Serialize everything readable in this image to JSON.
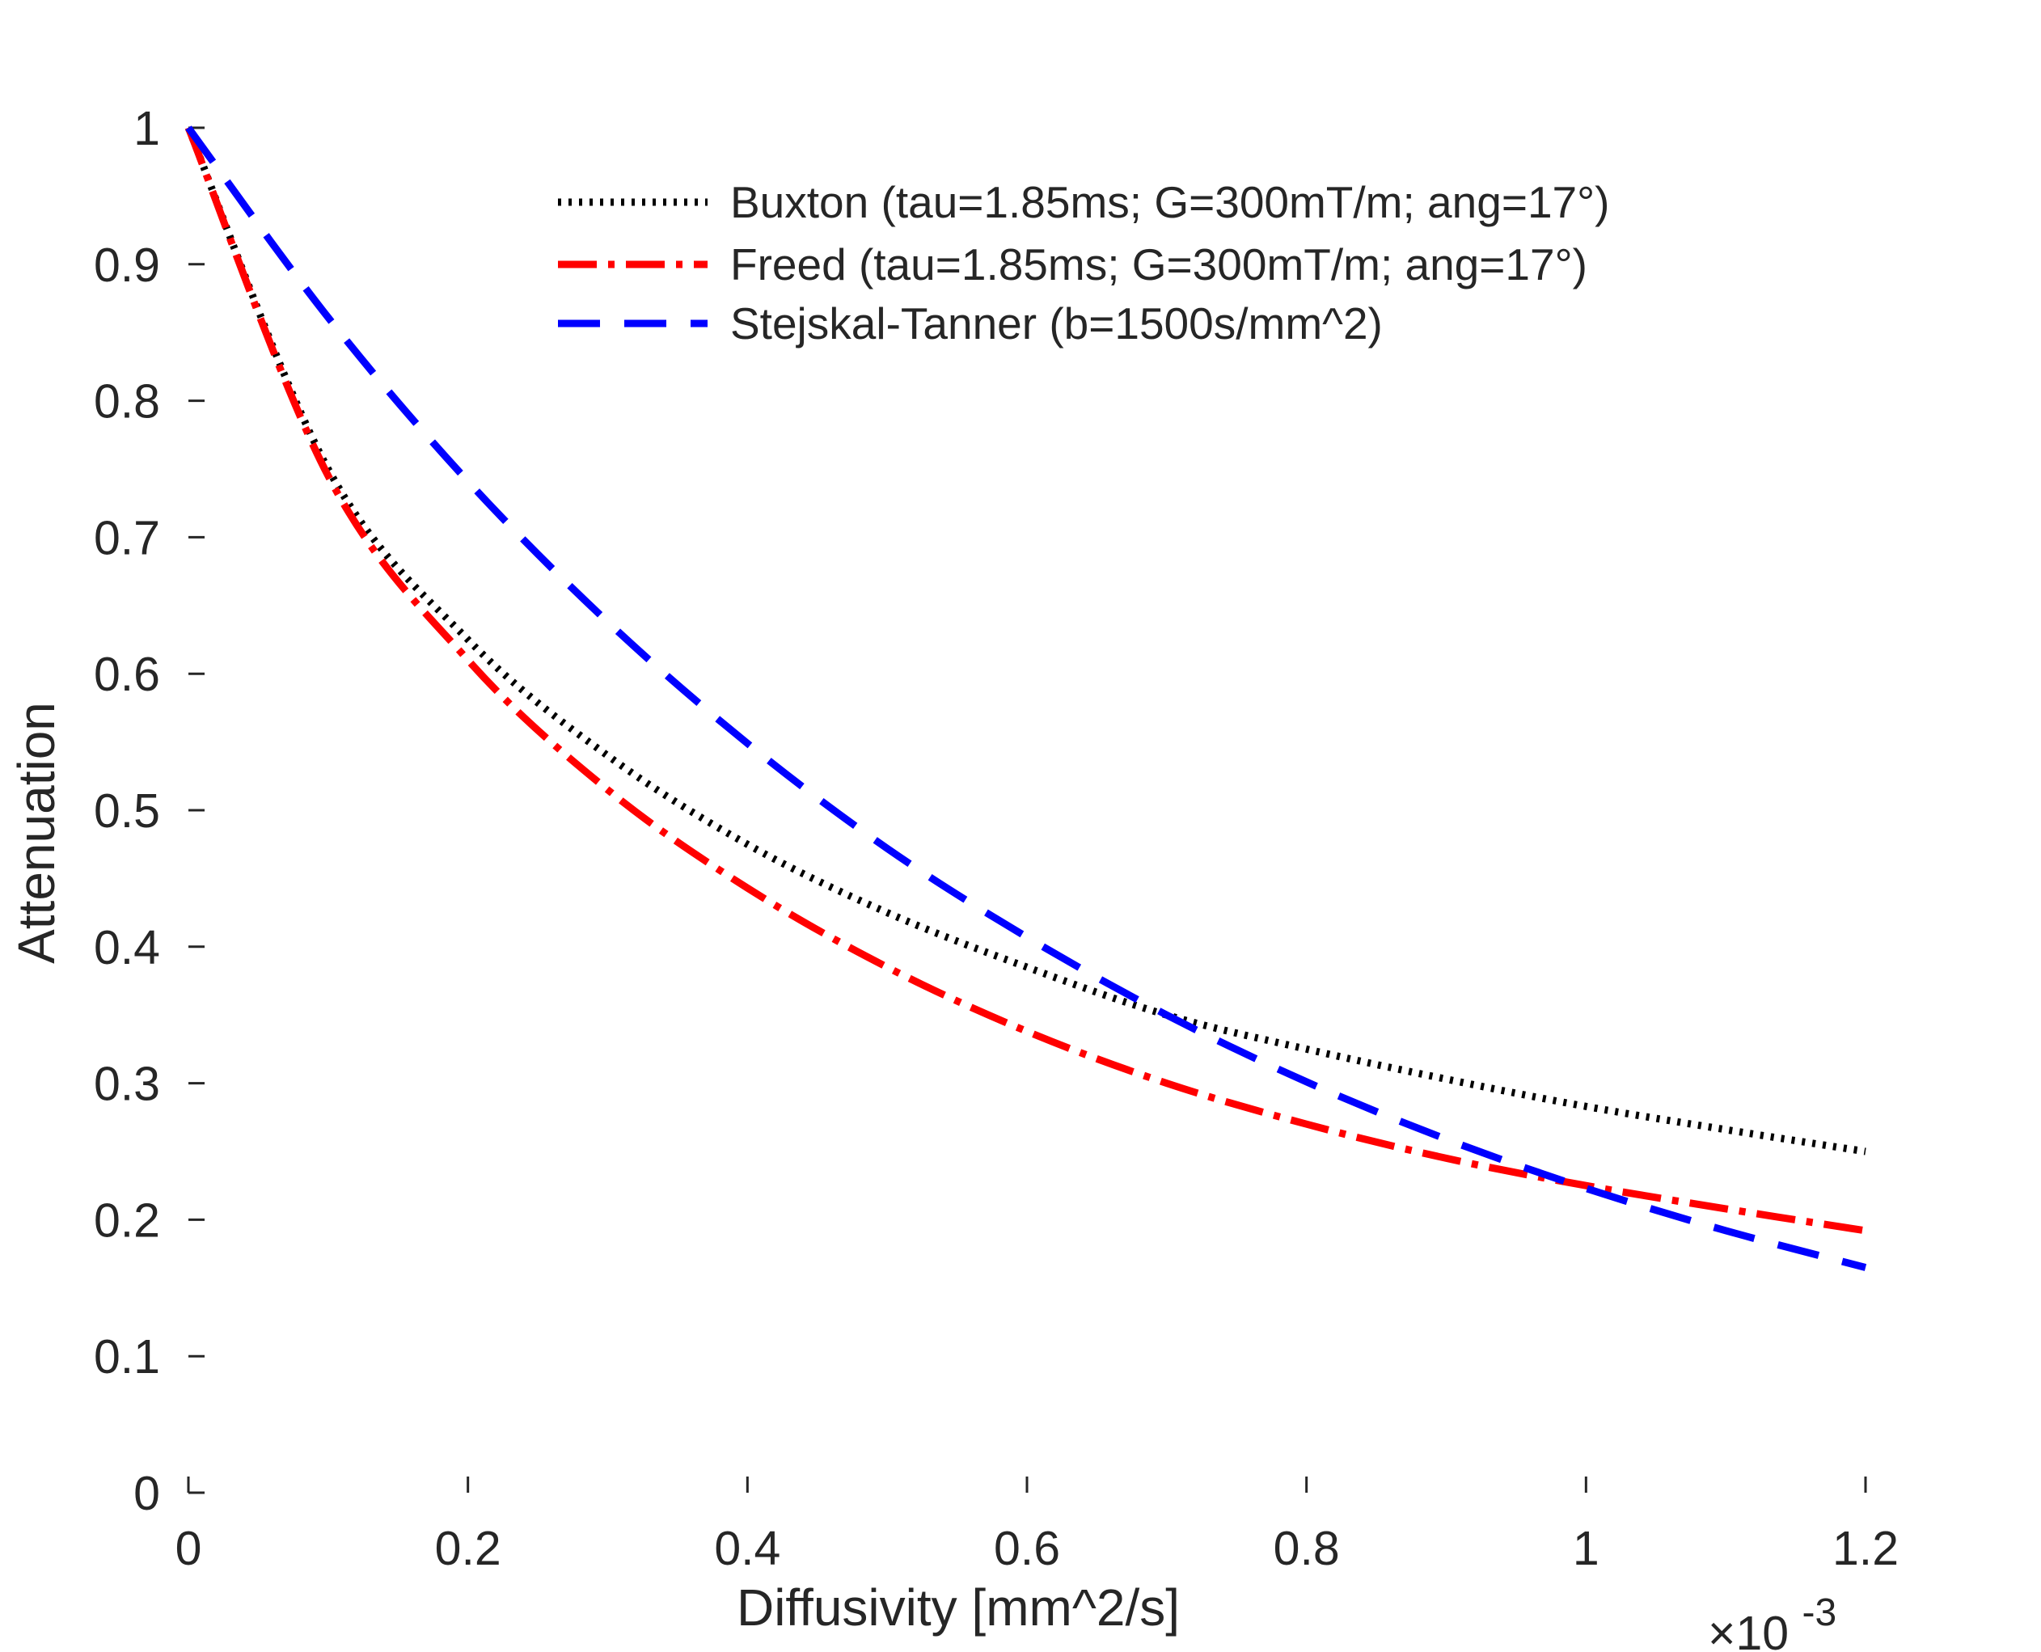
{
  "chart_data": {
    "type": "line",
    "xlabel": "Diffusivity [mm^2/s]",
    "ylabel": "Attenuation",
    "x_exponent_label": "×10",
    "x_exponent_power": "-3",
    "x_scale_factor": 0.001,
    "xlim": [
      0,
      0.0012
    ],
    "ylim": [
      0,
      1
    ],
    "x_ticks": [
      0,
      0.0002,
      0.0004,
      0.0006,
      0.0008,
      0.001,
      0.0012
    ],
    "x_tick_labels": [
      "0",
      "0.2",
      "0.4",
      "0.6",
      "0.8",
      "1",
      "1.2"
    ],
    "y_ticks": [
      0,
      0.1,
      0.2,
      0.3,
      0.4,
      0.5,
      0.6,
      0.7,
      0.8,
      0.9,
      1
    ],
    "y_tick_labels": [
      "0",
      "0.1",
      "0.2",
      "0.3",
      "0.4",
      "0.5",
      "0.6",
      "0.7",
      "0.8",
      "0.9",
      "1"
    ],
    "grid": false,
    "legend_position": "top-center",
    "x": [
      0,
      0.0001,
      0.0002,
      0.0003,
      0.0004,
      0.0005,
      0.0006,
      0.0007,
      0.0008,
      0.0009,
      0.001,
      0.0011,
      0.0012
    ],
    "series": [
      {
        "name": "Buxton (tau=1.85ms; G=300mT/m; ang=17°)",
        "color": "#000000",
        "style": "dotted",
        "values": [
          1,
          0.75,
          0.625,
          0.54,
          0.475,
          0.425,
          0.385,
          0.35,
          0.325,
          0.303,
          0.283,
          0.266,
          0.25
        ]
      },
      {
        "name": "Freed (tau=1.85ms; G=300mT/m; ang=17°)",
        "color": "#ff0000",
        "style": "dashdot",
        "values": [
          1,
          0.745,
          0.61,
          0.515,
          0.443,
          0.385,
          0.338,
          0.3,
          0.27,
          0.245,
          0.225,
          0.208,
          0.192
        ]
      },
      {
        "name": "Stejskal-Tanner (b=1500s/mm^2)",
        "color": "#0000ff",
        "style": "dashed",
        "values": [
          1,
          0.861,
          0.741,
          0.638,
          0.549,
          0.472,
          0.407,
          0.35,
          0.301,
          0.259,
          0.223,
          0.192,
          0.165
        ]
      }
    ]
  }
}
